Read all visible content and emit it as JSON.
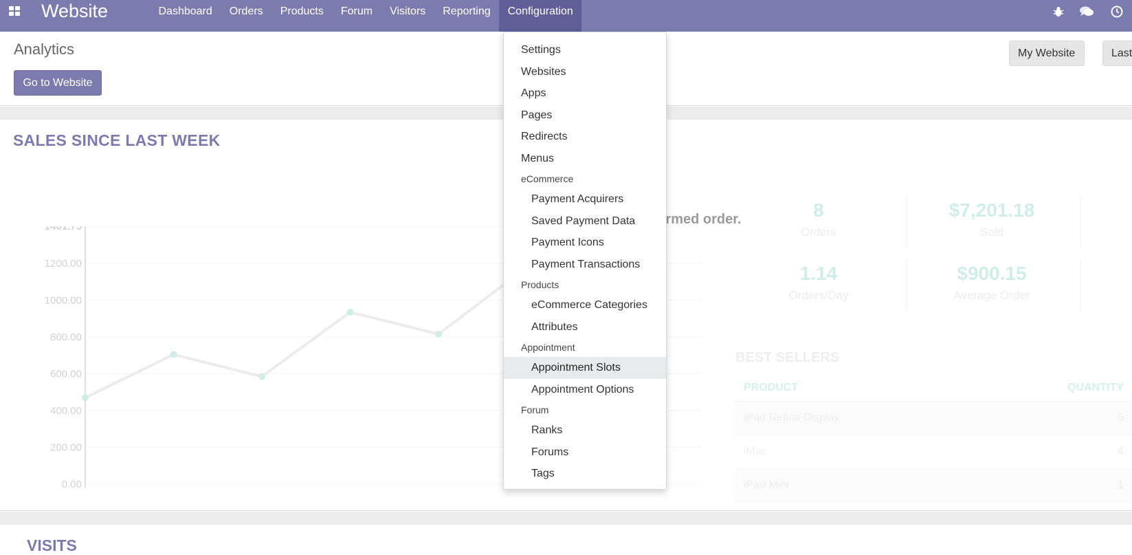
{
  "navbar": {
    "app_name": "Website",
    "menu": [
      {
        "label": "Dashboard"
      },
      {
        "label": "Orders"
      },
      {
        "label": "Products"
      },
      {
        "label": "Forum"
      },
      {
        "label": "Visitors"
      },
      {
        "label": "Reporting"
      },
      {
        "label": "Configuration",
        "active": true
      }
    ],
    "icons": [
      "bug-icon",
      "chat-icon",
      "clock-icon"
    ],
    "color": "#7c7bad"
  },
  "control_panel": {
    "title": "Analytics",
    "go_to_website": "Go to Website",
    "website_selector": "My Website",
    "period_selector": "Last"
  },
  "configuration_menu": {
    "items_top": [
      "Settings",
      "Websites",
      "Apps",
      "Pages",
      "Redirects",
      "Menus"
    ],
    "sections": [
      {
        "header": "eCommerce",
        "items": [
          "Payment Acquirers",
          "Saved Payment Data",
          "Payment Icons",
          "Payment Transactions"
        ]
      },
      {
        "header": "Products",
        "items": [
          "eCommerce Categories",
          "Attributes"
        ]
      },
      {
        "header": "Appointment",
        "items": [
          "Appointment Slots",
          "Appointment Options"
        ],
        "hovered": "Appointment Slots"
      },
      {
        "header": "Forum",
        "items": [
          "Ranks",
          "Forums",
          "Tags"
        ]
      }
    ]
  },
  "sales": {
    "title": "SALES SINCE LAST WEEK",
    "overlay_message": "nfirmed order.",
    "stats": [
      {
        "value": "8",
        "label": "Orders"
      },
      {
        "value": "$7,201.18",
        "label": "Sold"
      },
      {
        "value": "1.14",
        "label": "Orders/Day"
      },
      {
        "value": "$900.15",
        "label": "Average Order"
      }
    ],
    "best_sellers": {
      "title": "BEST SELLERS",
      "columns": [
        "PRODUCT",
        "QUANTITY"
      ],
      "rows": [
        {
          "product": "iPad Retina Display",
          "quantity": "5"
        },
        {
          "product": "iMac",
          "quantity": "4"
        },
        {
          "product": "iPad Mini",
          "quantity": "1"
        }
      ]
    }
  },
  "chart_data": {
    "type": "line",
    "y_ticks": [
      "1401.75",
      "1200.00",
      "1000.00",
      "800.00",
      "600.00",
      "400.00",
      "200.00",
      "0.00"
    ],
    "ylim": [
      0,
      1401.75
    ],
    "series": [
      {
        "values": [
          470,
          705,
          585,
          935,
          815,
          1180,
          1401.75
        ]
      }
    ],
    "accent_color": "#cfeeea"
  },
  "visits": {
    "title": "VISITS"
  }
}
